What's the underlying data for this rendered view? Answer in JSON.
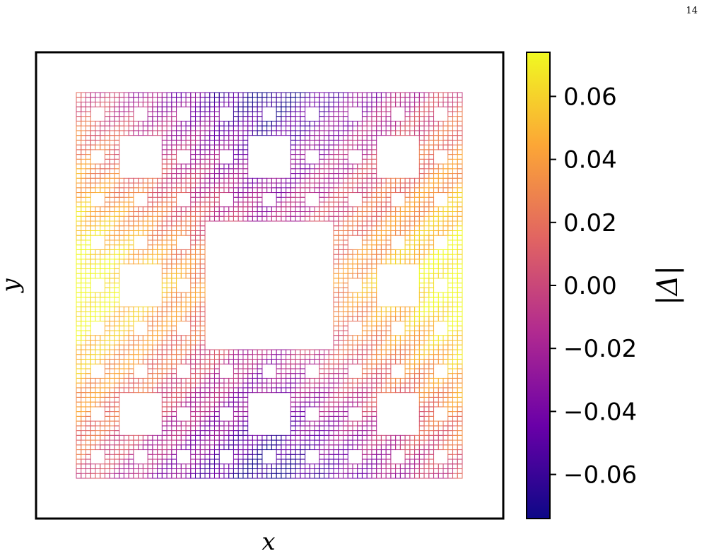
{
  "page_number": "14",
  "chart_data": {
    "type": "heatmap",
    "title": "",
    "xlabel": "x",
    "ylabel": "y",
    "ticks_visible": false,
    "grid": false,
    "fractal": "sierpinski-carpet",
    "fractal_levels": 4,
    "colormap": {
      "name": "plasma",
      "stops": [
        "#0d0887",
        "#6a00a8",
        "#b12a90",
        "#e16462",
        "#fca636",
        "#f0f921"
      ]
    },
    "colorbar": {
      "label": "|Δ|",
      "range": [
        -0.074,
        0.074
      ],
      "ticks": [
        -0.06,
        -0.04,
        -0.02,
        0.0,
        0.02,
        0.04,
        0.06
      ],
      "tick_labels": [
        "−0.06",
        "−0.04",
        "−0.02",
        "0.00",
        "0.02",
        "0.04",
        "0.06"
      ]
    }
  }
}
